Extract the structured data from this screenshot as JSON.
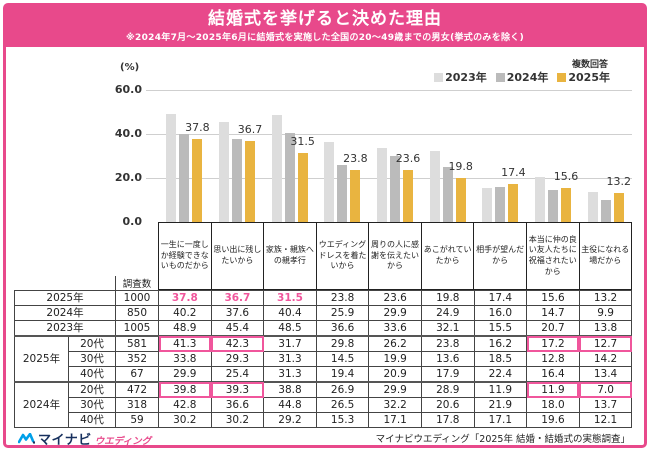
{
  "header": {
    "title": "結婚式を挙げると決めた理由",
    "subtitle": "※2024年7月～2025年6月に結婚式を実施した全国の20～49歳までの男女(挙式のみを除く)"
  },
  "legend": {
    "note": "複数回答",
    "items": [
      {
        "label": "2023年",
        "color": "#DDDDDD"
      },
      {
        "label": "2024年",
        "color": "#BBBBBB"
      },
      {
        "label": "2025年",
        "color": "#E9B440"
      }
    ]
  },
  "chart_data": {
    "type": "bar",
    "unit_label": "(%)",
    "ylim": [
      0,
      60
    ],
    "yticks": [
      "60.0",
      "40.0",
      "20.0",
      "0.0"
    ],
    "grid": true,
    "legend_position": "top-right",
    "categories": [
      "一生に一度しか経験できないものだから",
      "思い出に残したいから",
      "家族・親族への親孝行",
      "ウエディングドレスを着たいから",
      "周りの人に感謝を伝えたいから",
      "あこがれていたから",
      "相手が望んだから",
      "本当に仲の良い友人たちに祝福されたいから",
      "主役になれる場だから"
    ],
    "series": [
      {
        "name": "2023年",
        "color": "#DDDDDD",
        "values": [
          48.9,
          45.4,
          48.5,
          36.6,
          33.6,
          32.1,
          15.5,
          20.7,
          13.8
        ]
      },
      {
        "name": "2024年",
        "color": "#BBBBBB",
        "values": [
          40.2,
          37.6,
          40.4,
          25.9,
          29.9,
          24.9,
          16.0,
          14.7,
          9.9
        ]
      },
      {
        "name": "2025年",
        "color": "#E9B440",
        "values": [
          37.8,
          36.7,
          31.5,
          23.8,
          23.6,
          19.8,
          17.4,
          15.6,
          13.2
        ]
      }
    ],
    "bar_labels_series": "2025年",
    "bar_labels": [
      "37.8",
      "36.7",
      "31.5",
      "23.8",
      "23.6",
      "19.8",
      "17.4",
      "15.6",
      "13.2"
    ]
  },
  "table": {
    "count_header": "調査数",
    "rows": [
      {
        "year": "2025年",
        "age": "",
        "count": "1000",
        "values": [
          "37.8",
          "36.7",
          "31.5",
          "23.8",
          "23.6",
          "19.8",
          "17.4",
          "15.6",
          "13.2"
        ],
        "pink_text": [
          0,
          1,
          2
        ]
      },
      {
        "year": "2024年",
        "age": "",
        "count": "850",
        "values": [
          "40.2",
          "37.6",
          "40.4",
          "25.9",
          "29.9",
          "24.9",
          "16.0",
          "14.7",
          "9.9"
        ]
      },
      {
        "year": "2023年",
        "age": "",
        "count": "1005",
        "values": [
          "48.9",
          "45.4",
          "48.5",
          "36.6",
          "33.6",
          "32.1",
          "15.5",
          "20.7",
          "13.8"
        ]
      },
      {
        "year": "2025年",
        "age": "20代",
        "count": "581",
        "values": [
          "41.3",
          "42.3",
          "31.7",
          "29.8",
          "26.2",
          "23.8",
          "16.2",
          "17.2",
          "12.7"
        ],
        "pink_border": [
          0,
          1,
          7,
          8
        ]
      },
      {
        "year": "2025年",
        "age": "30代",
        "count": "352",
        "values": [
          "33.8",
          "29.3",
          "31.3",
          "14.5",
          "19.9",
          "13.6",
          "18.5",
          "12.8",
          "14.2"
        ]
      },
      {
        "year": "2025年",
        "age": "40代",
        "count": "67",
        "values": [
          "29.9",
          "25.4",
          "31.3",
          "19.4",
          "20.9",
          "17.9",
          "22.4",
          "16.4",
          "13.4"
        ]
      },
      {
        "year": "2024年",
        "age": "20代",
        "count": "472",
        "values": [
          "39.8",
          "39.3",
          "38.8",
          "26.9",
          "29.9",
          "28.9",
          "11.9",
          "11.9",
          "7.0"
        ],
        "pink_border": [
          0,
          1,
          7,
          8
        ]
      },
      {
        "year": "2024年",
        "age": "30代",
        "count": "318",
        "values": [
          "42.8",
          "36.6",
          "44.8",
          "26.5",
          "32.2",
          "20.6",
          "21.9",
          "18.0",
          "13.7"
        ]
      },
      {
        "year": "2024年",
        "age": "40代",
        "count": "59",
        "values": [
          "30.2",
          "30.2",
          "29.2",
          "15.3",
          "17.1",
          "17.8",
          "17.1",
          "19.6",
          "12.1"
        ]
      }
    ]
  },
  "footer": {
    "logo_main": "マイナビ",
    "logo_sub": "ウエディング",
    "source": "マイナビウエディング「2025年 結婚・結婚式の実態調査」"
  },
  "colors": {
    "accent_pink": "#E8498B",
    "highlight_pink": "#F0569C",
    "bar_2023": "#DDDDDD",
    "bar_2024": "#BBBBBB",
    "bar_2025": "#E9B440",
    "logo_navy": "#17305E",
    "logo_blue": "#00A0E9"
  }
}
